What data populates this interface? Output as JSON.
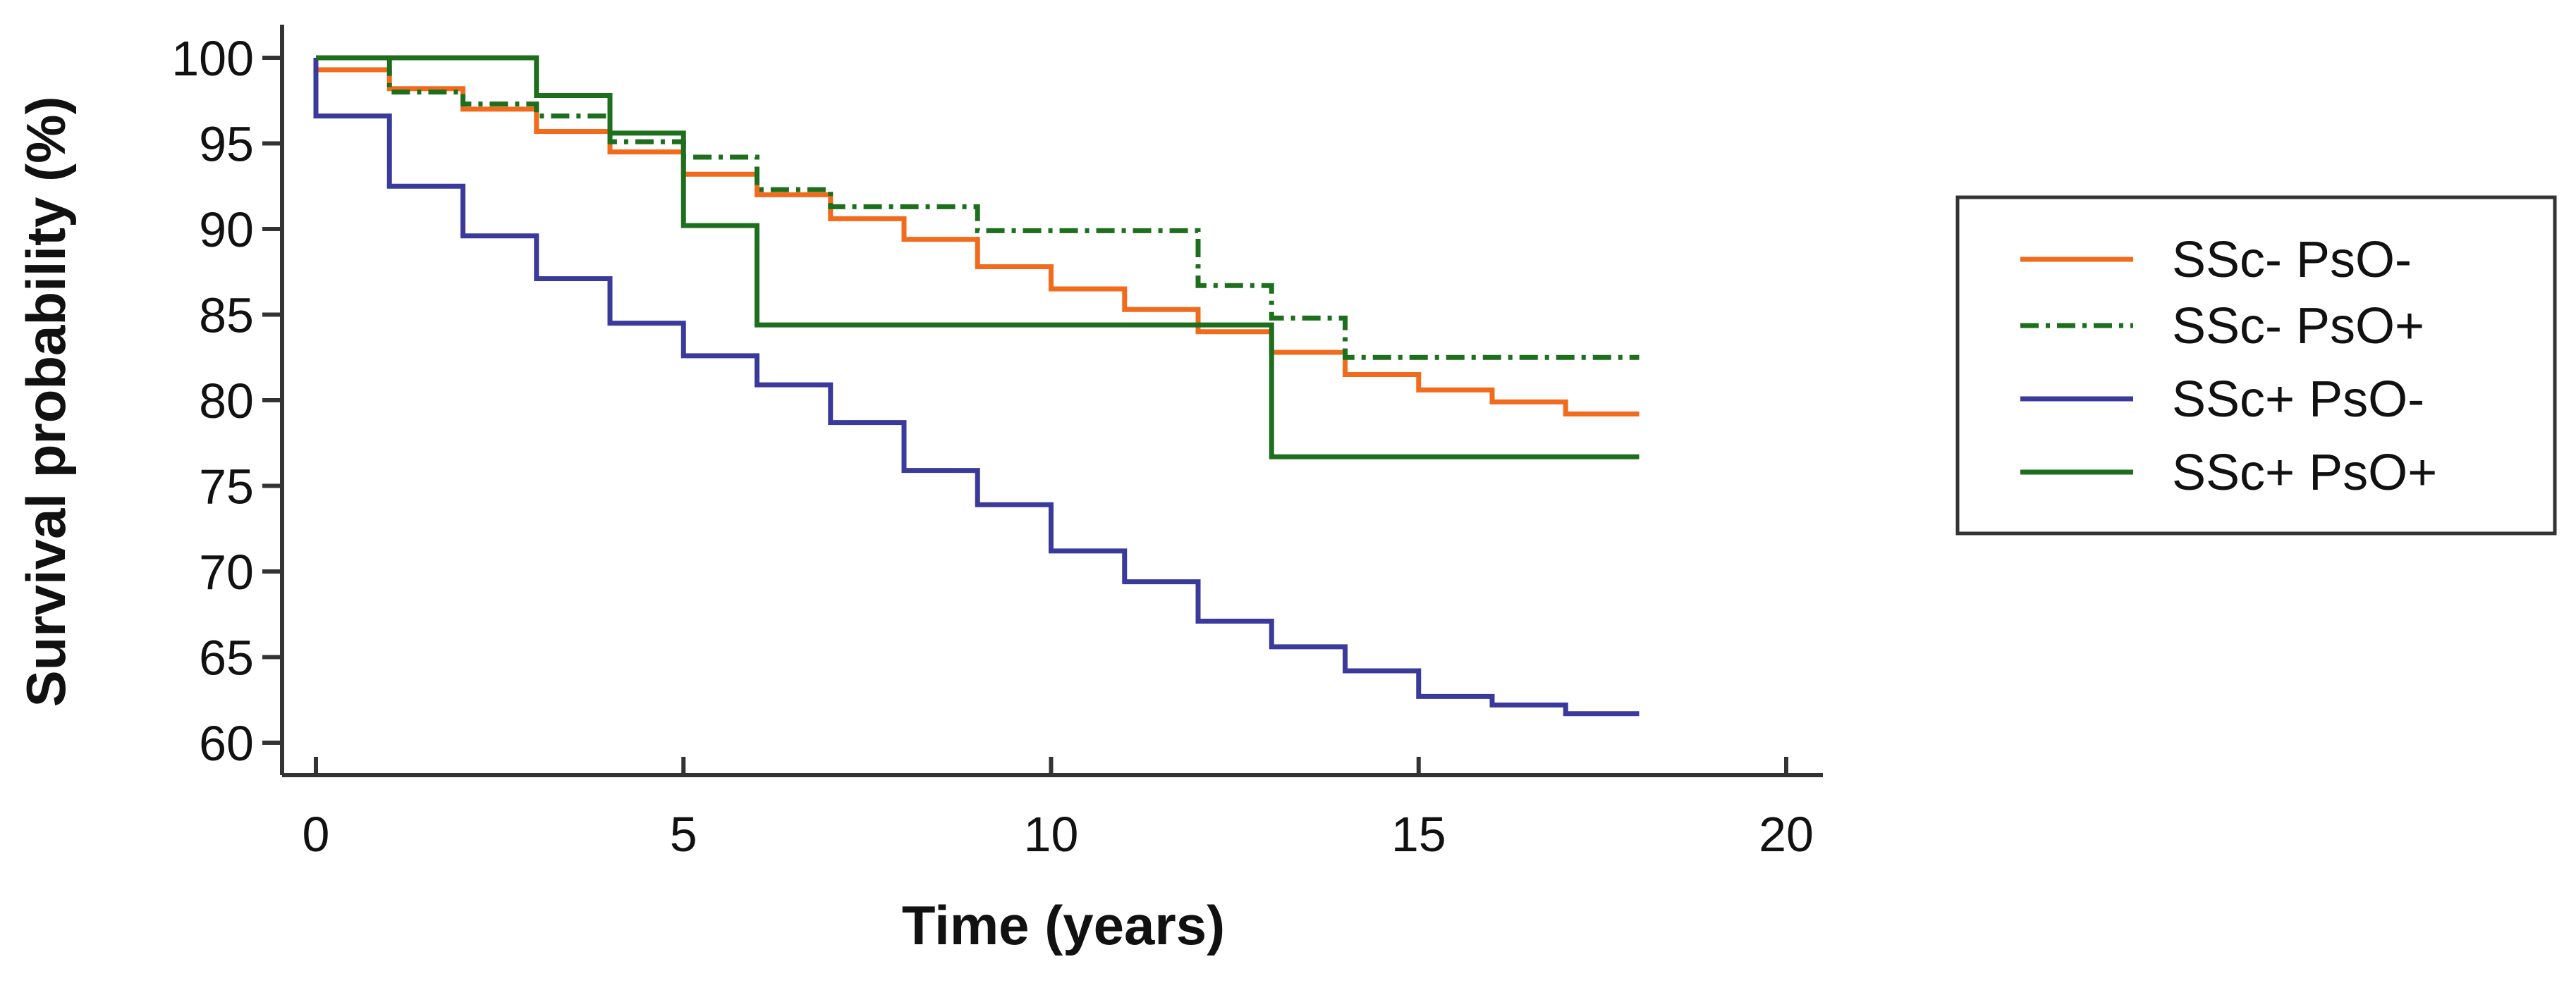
{
  "chart_data": {
    "type": "line",
    "subtype": "kaplan-meier-step",
    "title": "",
    "xlabel": "Time (years)",
    "ylabel": "Survival probability (%)",
    "xlim": [
      0,
      20
    ],
    "ylim": [
      60,
      100
    ],
    "x_ticks": [
      0,
      5,
      10,
      15,
      20
    ],
    "y_ticks": [
      60,
      65,
      70,
      75,
      80,
      85,
      90,
      95,
      100
    ],
    "grid": false,
    "legend_position": "right",
    "series": [
      {
        "name": "SSc- PsO-",
        "color": "#f26b1d",
        "line_style": "solid",
        "x": [
          0,
          1,
          2,
          3,
          4,
          5,
          6,
          7,
          8,
          9,
          10,
          11,
          12,
          13,
          14,
          15,
          16,
          17,
          18
        ],
        "y": [
          99.3,
          98.2,
          97.0,
          95.7,
          94.5,
          93.2,
          92.0,
          90.6,
          89.4,
          87.8,
          86.5,
          85.3,
          84.0,
          82.8,
          81.5,
          80.6,
          79.9,
          79.2,
          79.2
        ]
      },
      {
        "name": "SSc- PsO+",
        "color": "#1d6e1d",
        "line_style": "dashdot",
        "x": [
          0,
          1,
          2,
          3,
          4,
          5,
          6,
          7,
          9,
          12,
          13,
          14,
          18
        ],
        "y": [
          100,
          98.0,
          97.3,
          96.6,
          95.1,
          94.2,
          92.3,
          91.3,
          89.9,
          86.7,
          84.8,
          82.5,
          82.5
        ]
      },
      {
        "name": "SSc+ PsO-",
        "color": "#3a3a9c",
        "line_style": "solid",
        "x": [
          0,
          1,
          2,
          3,
          4,
          5,
          6,
          7,
          8,
          9,
          10,
          11,
          12,
          13,
          14,
          15,
          16,
          17,
          18
        ],
        "y": [
          96.6,
          92.5,
          89.6,
          87.1,
          84.5,
          82.6,
          80.9,
          78.7,
          75.9,
          73.9,
          71.2,
          69.4,
          67.1,
          65.6,
          64.2,
          62.7,
          62.2,
          61.7,
          61.7
        ]
      },
      {
        "name": "SSc+ PsO+",
        "color": "#1d6e1d",
        "line_style": "solid",
        "x": [
          0,
          3,
          4,
          5,
          6,
          13,
          18
        ],
        "y": [
          100,
          97.8,
          95.6,
          90.2,
          84.4,
          76.7,
          76.7
        ]
      }
    ]
  }
}
